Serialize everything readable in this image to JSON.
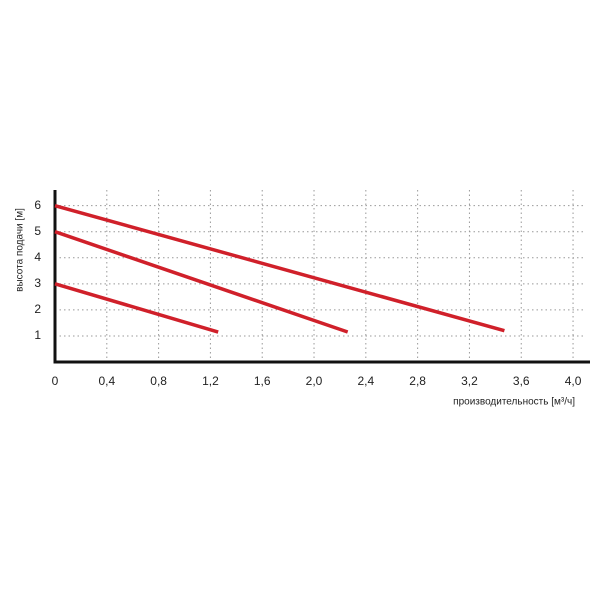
{
  "chart_data": {
    "type": "line",
    "ylabel": "высота подачи [м]",
    "xlabel": "производительность [м³/ч]",
    "xlim": [
      0,
      4.1
    ],
    "ylim": [
      0,
      6.6
    ],
    "xticks": [
      0,
      {
        "value": 0.4,
        "label": "0,4"
      },
      {
        "value": 0.8,
        "label": "0,8"
      },
      {
        "value": 1.2,
        "label": "1,2"
      },
      {
        "value": 1.6,
        "label": "1,6"
      },
      {
        "value": 2.0,
        "label": "2,0"
      },
      {
        "value": 2.4,
        "label": "2,4"
      },
      {
        "value": 2.8,
        "label": "2,8"
      },
      {
        "value": 3.2,
        "label": "3,2"
      },
      {
        "value": 3.6,
        "label": "3,6"
      },
      {
        "value": 4.0,
        "label": "4,0"
      }
    ],
    "yticks": [
      1,
      2,
      3,
      4,
      5,
      6
    ],
    "grid": true,
    "series": [
      {
        "color": "#d0202a",
        "x": [
          0,
          3.47
        ],
        "values": [
          6,
          1.2
        ]
      },
      {
        "color": "#d0202a",
        "x": [
          0,
          2.26
        ],
        "values": [
          5,
          1.15
        ]
      },
      {
        "color": "#d0202a",
        "x": [
          0,
          1.26
        ],
        "values": [
          3,
          1.15
        ]
      }
    ]
  }
}
